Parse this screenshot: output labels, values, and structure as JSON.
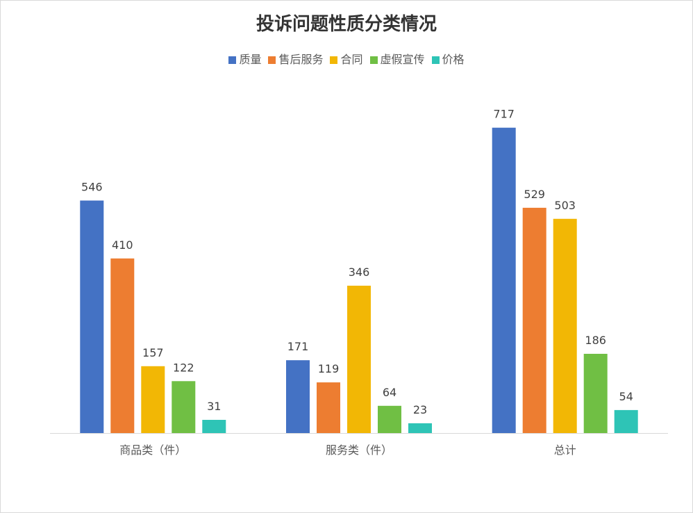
{
  "chart_data": {
    "type": "bar",
    "title": "投诉问题性质分类情况",
    "xlabel": "",
    "ylabel": "",
    "categories": [
      "商品类（件）",
      "服务类（件）",
      "总计"
    ],
    "series": [
      {
        "name": "质量",
        "color": "#4472C4",
        "values": [
          546,
          171,
          717
        ]
      },
      {
        "name": "售后服务",
        "color": "#ED7D31",
        "values": [
          410,
          119,
          529
        ]
      },
      {
        "name": "合同",
        "color": "#F2B705",
        "values": [
          157,
          346,
          503
        ]
      },
      {
        "name": "虚假宣传",
        "color": "#70BF44",
        "values": [
          122,
          64,
          186
        ]
      },
      {
        "name": "价格",
        "color": "#2EC4B6",
        "values": [
          31,
          23,
          54
        ]
      }
    ],
    "ylim": [
      0,
      800
    ],
    "grid": false,
    "legend": "top"
  }
}
